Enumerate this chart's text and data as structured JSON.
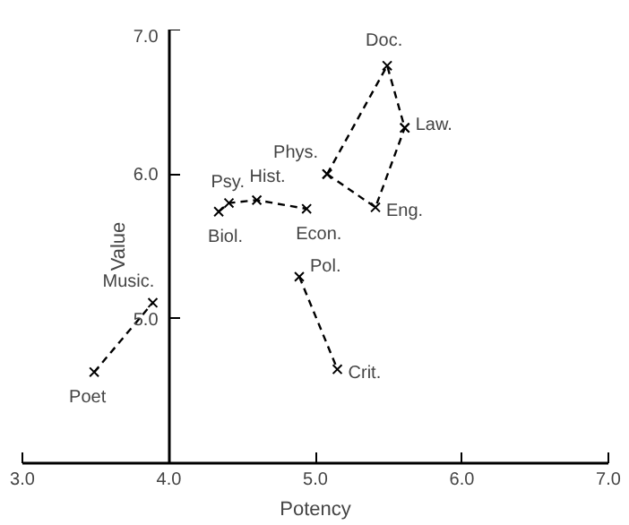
{
  "chart_data": {
    "type": "line",
    "xlabel": "Potency",
    "ylabel": "Value",
    "xlim": [
      3.0,
      7.0
    ],
    "ylim": [
      4.0,
      7.0
    ],
    "xticks": [
      {
        "value": 3.0,
        "label": "3.0"
      },
      {
        "value": 4.0,
        "label": "4.0"
      },
      {
        "value": 5.0,
        "label": "5.0"
      },
      {
        "value": 6.0,
        "label": "6.0"
      },
      {
        "value": 7.0,
        "label": "7.0"
      }
    ],
    "yticks": [
      {
        "value": 5.0,
        "label": "5.0"
      },
      {
        "value": 6.0,
        "label": "6.0"
      },
      {
        "value": 7.0,
        "label": "7.0"
      }
    ],
    "grid": false,
    "marker": "cross",
    "line_style": "dashed",
    "series": [
      {
        "color": "#000000",
        "x": [
          3.49,
          3.89
        ],
        "values": [
          4.63,
          5.11
        ]
      },
      {
        "color": "#000000",
        "x": [
          4.34,
          4.41,
          4.6,
          4.94
        ],
        "values": [
          5.74,
          5.8,
          5.82,
          5.76
        ]
      },
      {
        "color": "#000000",
        "x": [
          4.89,
          5.15
        ],
        "values": [
          5.29,
          4.65
        ]
      },
      {
        "color": "#000000",
        "x": [
          5.08,
          5.49,
          5.61
        ],
        "values": [
          6.0,
          6.75,
          6.32
        ]
      },
      {
        "color": "#000000",
        "x": [
          5.08,
          5.41,
          5.61
        ],
        "values": [
          6.0,
          5.77,
          6.32
        ]
      }
    ],
    "annotations": [
      {
        "text": "Poet",
        "x": 3.49,
        "y": 4.63
      },
      {
        "text": "Music.",
        "x": 3.89,
        "y": 5.11
      },
      {
        "text": "Biol.",
        "x": 4.34,
        "y": 5.74
      },
      {
        "text": "Psy.",
        "x": 4.41,
        "y": 5.8
      },
      {
        "text": "Hist.",
        "x": 4.6,
        "y": 5.82
      },
      {
        "text": "Econ.",
        "x": 4.94,
        "y": 5.76
      },
      {
        "text": "Pol.",
        "x": 4.89,
        "y": 5.29
      },
      {
        "text": "Crit.",
        "x": 5.15,
        "y": 4.65
      },
      {
        "text": "Phys.",
        "x": 5.08,
        "y": 6.0
      },
      {
        "text": "Doc.",
        "x": 5.49,
        "y": 6.75
      },
      {
        "text": "Law.",
        "x": 5.61,
        "y": 6.32
      },
      {
        "text": "Eng.",
        "x": 5.41,
        "y": 5.77
      }
    ]
  }
}
